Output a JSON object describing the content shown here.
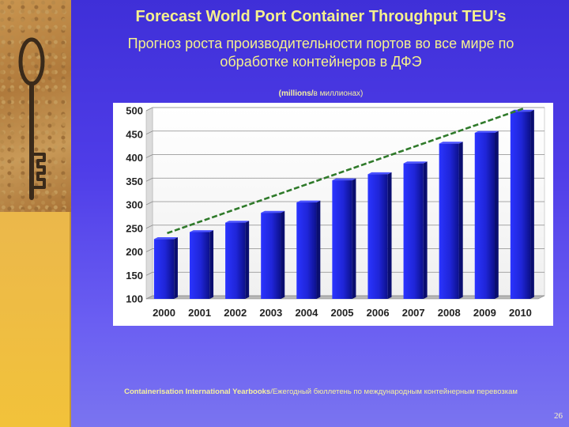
{
  "slide": {
    "title": "Forecast World Port Container Throughput TEU’s",
    "subtitle_line1": "Прогноз роста производительности портов во все мире по",
    "subtitle_line2": "обработке контейнеров в ДФЭ",
    "unit_en": "(millions/",
    "unit_ru": "в миллионах)",
    "source_en": "Containerisation International Yearbooks",
    "source_ru": "/Ежегодный бюллетень по международным контейнерным перевозкам",
    "page_number": "26",
    "colors": {
      "background": "#4535e0",
      "text": "#f4f08e",
      "bar": "#1c22d8",
      "trend": "#2f7a2a"
    }
  },
  "chart_data": {
    "type": "bar",
    "title": "Forecast World Port Container Throughput TEU’s",
    "xlabel": "",
    "ylabel": "millions",
    "categories": [
      "2000",
      "2001",
      "2002",
      "2003",
      "2004",
      "2005",
      "2006",
      "2007",
      "2008",
      "2009",
      "2010"
    ],
    "values": [
      227,
      242,
      262,
      283,
      305,
      352,
      365,
      388,
      430,
      453,
      498
    ],
    "ylim": [
      100,
      500
    ],
    "yticks": [
      "100",
      "150",
      "200",
      "250",
      "300",
      "350",
      "400",
      "450",
      "500"
    ],
    "trendline": {
      "from": [
        "2000",
        233
      ],
      "to": [
        "2010",
        498
      ]
    },
    "grid": true
  }
}
